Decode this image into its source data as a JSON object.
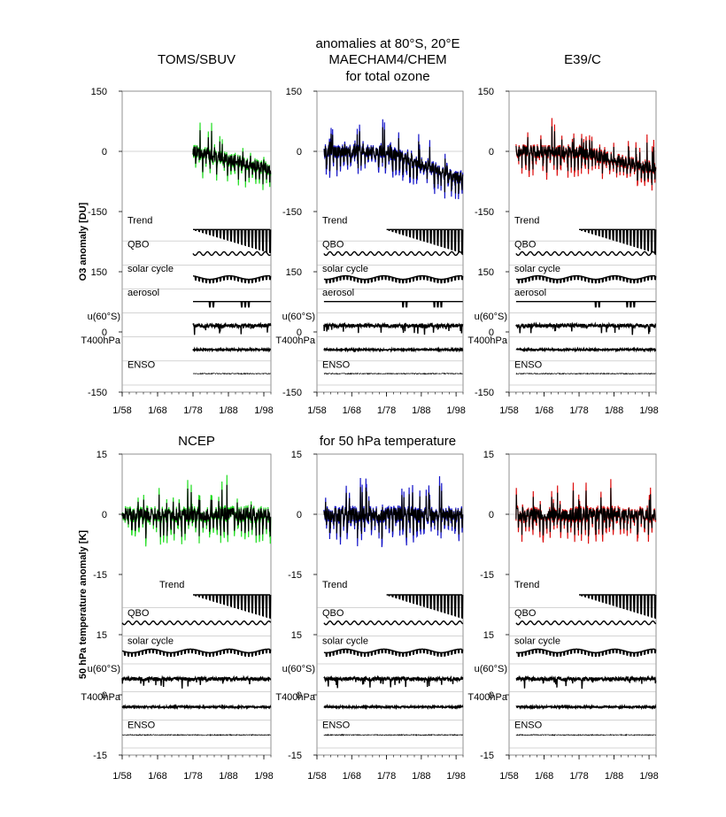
{
  "figure": {
    "title_top_lines": [
      "anomalies at 80°S, 20°E",
      "MAECHAM4/CHEM",
      "for total ozone"
    ],
    "title_bottom": "for 50 hPa temperature"
  },
  "colors": {
    "observation": "#22dd22",
    "maecham": "#1515c8",
    "e39c": "#dd1111",
    "fit": "#000000",
    "grid": "#aaaaaa"
  },
  "chart_data": [
    {
      "type": "line",
      "title": "TOMS/SBUV",
      "ylabel": "O3 anomaly [DU]",
      "row": "ozone",
      "color_key": "observation",
      "data_start_year": 1978,
      "series": [
        {
          "name": "TOMS/SBUV",
          "start": 1978,
          "end": 1999
        },
        {
          "name": "regression fit",
          "start": 1978,
          "end": 1999
        }
      ],
      "yticks_upper": [
        "150",
        "0",
        "-150"
      ],
      "yticks_lower": [
        "150",
        "0",
        "-150"
      ],
      "ylim_upper": [
        -150,
        150
      ],
      "ylim_lower": [
        -150,
        150
      ],
      "xticks": [
        "1/58",
        "1/68",
        "1/78",
        "1/88",
        "1/98"
      ],
      "xlim": [
        1958,
        2000
      ],
      "components": [
        "Trend",
        "QBO",
        "solar cycle",
        "aerosol",
        "u(60°S)",
        "T400hPa",
        "ENSO"
      ]
    },
    {
      "type": "line",
      "title": "",
      "ylabel": "",
      "row": "ozone",
      "color_key": "maecham",
      "data_start_year": 1960,
      "series": [
        {
          "name": "MAECHAM4/CHEM",
          "start": 1960,
          "end": 1999
        },
        {
          "name": "regression fit",
          "start": 1960,
          "end": 1999
        }
      ],
      "yticks_upper": [
        "150",
        "0",
        "-150"
      ],
      "yticks_lower": [
        "150",
        "0",
        "-150"
      ],
      "ylim_upper": [
        -150,
        150
      ],
      "ylim_lower": [
        -150,
        150
      ],
      "xticks": [
        "1/58",
        "1/68",
        "1/78",
        "1/88",
        "1/98"
      ],
      "xlim": [
        1958,
        2000
      ],
      "components": [
        "Trend",
        "QBO",
        "solar cycle",
        "aerosol",
        "u(60°S)",
        "T400hPa",
        "ENSO"
      ]
    },
    {
      "type": "line",
      "title": "E39/C",
      "ylabel": "",
      "row": "ozone",
      "color_key": "e39c",
      "data_start_year": 1960,
      "series": [
        {
          "name": "E39/C",
          "start": 1960,
          "end": 1999
        },
        {
          "name": "regression fit",
          "start": 1960,
          "end": 1999
        }
      ],
      "yticks_upper": [
        "150",
        "0",
        "-150"
      ],
      "yticks_lower": [
        "150",
        "0",
        "-150"
      ],
      "ylim_upper": [
        -150,
        150
      ],
      "ylim_lower": [
        -150,
        150
      ],
      "xticks": [
        "1/58",
        "1/68",
        "1/78",
        "1/88",
        "1/98"
      ],
      "xlim": [
        1958,
        2000
      ],
      "components": [
        "Trend",
        "QBO",
        "solar cycle",
        "aerosol",
        "u(60°S)",
        "T400hPa",
        "ENSO"
      ]
    },
    {
      "type": "line",
      "title": "NCEP",
      "ylabel": "50 hPa temperature anomaly [K]",
      "row": "temperature",
      "color_key": "observation",
      "data_start_year": 1958,
      "series": [
        {
          "name": "NCEP",
          "start": 1958,
          "end": 1999
        },
        {
          "name": "regression fit",
          "start": 1958,
          "end": 1999
        }
      ],
      "yticks_upper": [
        "15",
        "0",
        "-15"
      ],
      "yticks_lower": [
        "15",
        "0",
        "-15"
      ],
      "ylim_upper": [
        -15,
        15
      ],
      "ylim_lower": [
        -15,
        15
      ],
      "xticks": [
        "1/58",
        "1/68",
        "1/78",
        "1/88",
        "1/98"
      ],
      "xlim": [
        1958,
        2000
      ],
      "components": [
        "Trend",
        "QBO",
        "solar cycle",
        "u(60°S)",
        "T400hPa",
        "ENSO"
      ]
    },
    {
      "type": "line",
      "title": "",
      "ylabel": "",
      "row": "temperature",
      "color_key": "maecham",
      "data_start_year": 1960,
      "series": [
        {
          "name": "MAECHAM4/CHEM",
          "start": 1960,
          "end": 1999
        },
        {
          "name": "regression fit",
          "start": 1960,
          "end": 1999
        }
      ],
      "yticks_upper": [
        "15",
        "0",
        "-15"
      ],
      "yticks_lower": [
        "15",
        "0",
        "-15"
      ],
      "ylim_upper": [
        -15,
        15
      ],
      "ylim_lower": [
        -15,
        15
      ],
      "xticks": [
        "1/58",
        "1/68",
        "1/78",
        "1/88",
        "1/98"
      ],
      "xlim": [
        1958,
        2000
      ],
      "components": [
        "Trend",
        "QBO",
        "solar cycle",
        "u(60°S)",
        "T400hPa",
        "ENSO"
      ]
    },
    {
      "type": "line",
      "title": "",
      "ylabel": "",
      "row": "temperature",
      "color_key": "e39c",
      "data_start_year": 1960,
      "series": [
        {
          "name": "E39/C",
          "start": 1960,
          "end": 1999
        },
        {
          "name": "regression fit",
          "start": 1960,
          "end": 1999
        }
      ],
      "yticks_upper": [
        "15",
        "0",
        "-15"
      ],
      "yticks_lower": [
        "15",
        "0",
        "-15"
      ],
      "ylim_upper": [
        -15,
        15
      ],
      "ylim_lower": [
        -15,
        15
      ],
      "xticks": [
        "1/58",
        "1/68",
        "1/78",
        "1/88",
        "1/98"
      ],
      "xlim": [
        1958,
        2000
      ],
      "components": [
        "Trend",
        "QBO",
        "solar cycle",
        "u(60°S)",
        "T400hPa",
        "ENSO"
      ]
    }
  ]
}
